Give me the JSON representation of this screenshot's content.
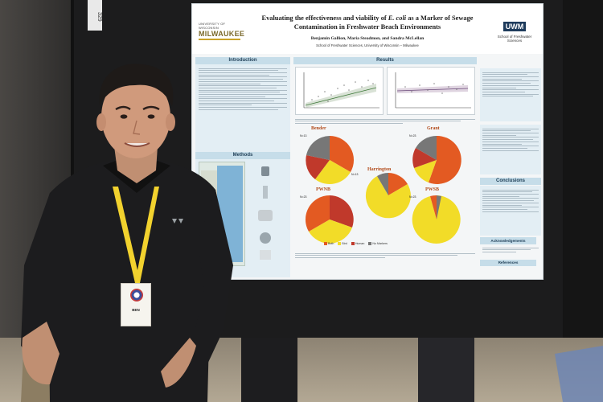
{
  "poster": {
    "logo_left_top": "UNIVERSITY OF WISCONSIN",
    "logo_left_main": "MILWAUKEE",
    "logo_right_main": "UWM",
    "logo_right_sub": "School of Freshwater Sciences",
    "title_part1": "Evaluating the effectiveness and viability of ",
    "title_italic": "E. coli",
    "title_part2": " as a Marker of Sewage Contamination in Freshwater Beach Environments",
    "authors": "Benjamin Gallion, Maria Steadmon, and Sandra McLellan",
    "affiliation": "School of Freshwater Sciences, University of Wisconsin – Milwaukee",
    "sections": {
      "introduction": "Introduction",
      "methods": "Methods",
      "results": "Results",
      "conclusions": "Conclusions",
      "acknowledgements": "Acknowledgements",
      "references": "References"
    },
    "pies": [
      {
        "label": "Bender",
        "n": "N=13"
      },
      {
        "label": "Grant",
        "n": "N=23"
      },
      {
        "label": "Harrington",
        "n": "N=13"
      },
      {
        "label": "PWNB",
        "n": "N=23"
      },
      {
        "label": "PWSB",
        "n": "N=23"
      }
    ],
    "legend": [
      {
        "name": "Both",
        "color": "#e35a22"
      },
      {
        "name": "Bird",
        "color": "#f2dc28"
      },
      {
        "name": "Human",
        "color": "#c0392b"
      },
      {
        "name": "No Markers",
        "color": "#777777"
      }
    ]
  },
  "tag_strip_text": "329",
  "badge_name": "BEN"
}
